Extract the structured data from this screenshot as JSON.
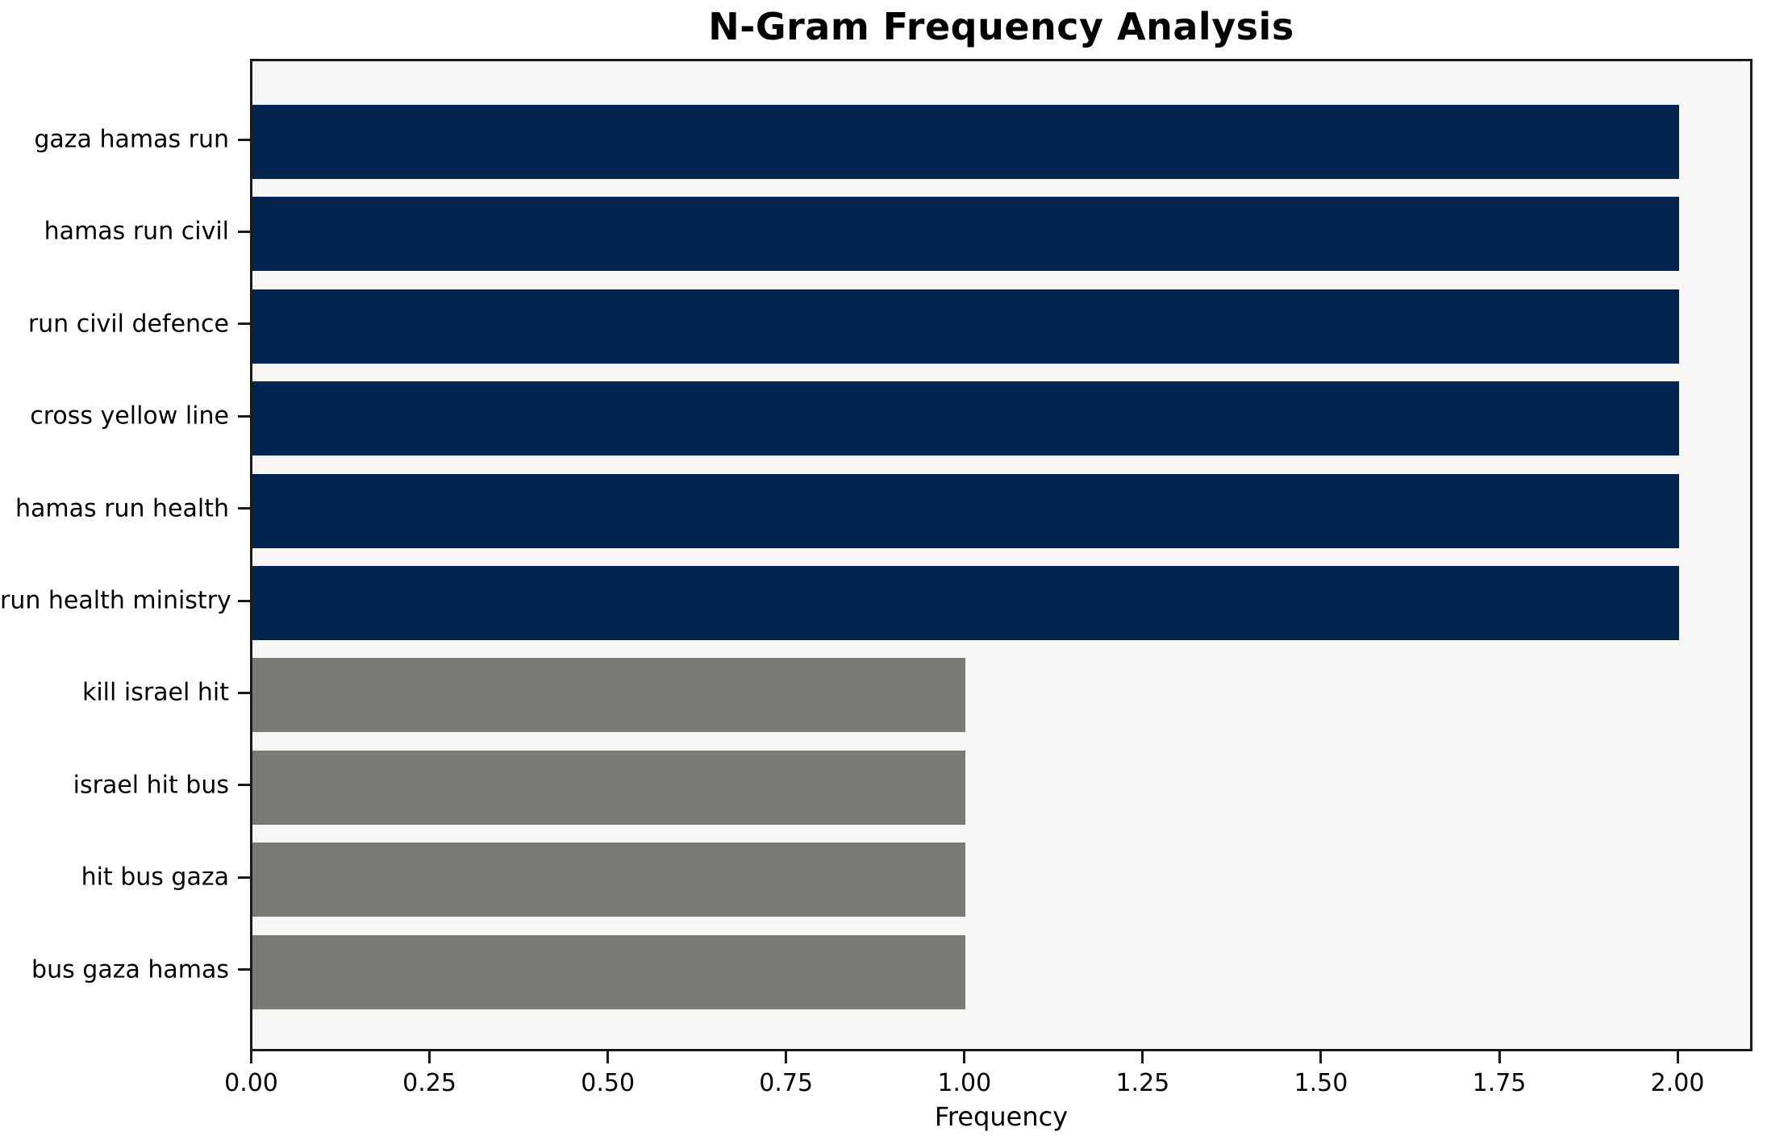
{
  "chart_data": {
    "type": "bar",
    "orientation": "horizontal",
    "title": "N-Gram Frequency Analysis",
    "xlabel": "Frequency",
    "ylabel": "",
    "categories": [
      "gaza hamas run",
      "hamas run civil",
      "run civil defence",
      "cross yellow line",
      "hamas run health",
      "run health ministry",
      "kill israel hit",
      "israel hit bus",
      "hit bus gaza",
      "bus gaza hamas"
    ],
    "values": [
      2,
      2,
      2,
      2,
      2,
      2,
      1,
      1,
      1,
      1
    ],
    "bar_colors": [
      "#03244f",
      "#03244f",
      "#03244f",
      "#03244f",
      "#03244f",
      "#03244f",
      "#7b7a76",
      "#7b7a76",
      "#7b7a76",
      "#7b7a76"
    ],
    "xlim": [
      0,
      2.1
    ],
    "xticks": [
      {
        "value": 0.0,
        "label": "0.00"
      },
      {
        "value": 0.25,
        "label": "0.25"
      },
      {
        "value": 0.5,
        "label": "0.50"
      },
      {
        "value": 0.75,
        "label": "0.75"
      },
      {
        "value": 1.0,
        "label": "1.00"
      },
      {
        "value": 1.25,
        "label": "1.25"
      },
      {
        "value": 1.5,
        "label": "1.50"
      },
      {
        "value": 1.75,
        "label": "1.75"
      },
      {
        "value": 2.0,
        "label": "2.00"
      }
    ],
    "grid": false,
    "legend": null,
    "colors": {
      "high_freq_bar": "#03244f",
      "low_freq_bar": "#7b7a76",
      "plot_background": "#f7f6f5",
      "figure_background": "#ffffff",
      "axis": "#1a1a1a"
    }
  }
}
